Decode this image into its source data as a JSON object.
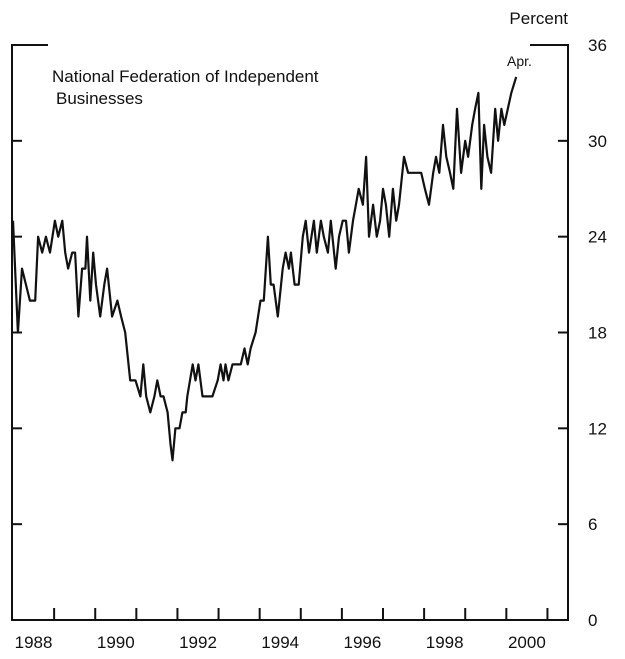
{
  "chart_data": {
    "type": "line",
    "y_axis_label": "Percent",
    "annotations": [
      "National Federation of Independent",
      "Businesses",
      "Apr."
    ],
    "xlim": [
      1988,
      2001.5
    ],
    "xticks": [
      1989,
      1990,
      1991,
      1992,
      1993,
      1994,
      1995,
      1996,
      1997,
      1998,
      1999,
      2000,
      2001
    ],
    "xlabels": [
      1988,
      1990,
      1992,
      1994,
      1996,
      1998,
      2000
    ],
    "ylim": [
      0,
      36
    ],
    "yticks": [
      0,
      6,
      12,
      18,
      24,
      30,
      36
    ],
    "series": [
      {
        "color": "#111111",
        "x": [
          1988.0,
          1988.12,
          1988.22,
          1988.41,
          1988.54,
          1988.61,
          1988.71,
          1988.8,
          1988.9,
          1989.02,
          1989.1,
          1989.2,
          1989.27,
          1989.34,
          1989.44,
          1989.51,
          1989.59,
          1989.68,
          1989.76,
          1989.8,
          1989.88,
          1989.95,
          1990.02,
          1990.12,
          1990.22,
          1990.29,
          1990.41,
          1990.54,
          1990.63,
          1990.73,
          1990.85,
          1990.98,
          1991.1,
          1991.17,
          1991.24,
          1991.34,
          1991.44,
          1991.51,
          1991.59,
          1991.66,
          1991.76,
          1991.83,
          1991.88,
          1991.95,
          1992.05,
          1992.12,
          1992.2,
          1992.24,
          1992.37,
          1992.44,
          1992.51,
          1992.61,
          1992.73,
          1992.85,
          1992.98,
          1993.05,
          1993.12,
          1993.17,
          1993.24,
          1993.34,
          1993.44,
          1993.54,
          1993.63,
          1993.71,
          1993.78,
          1993.9,
          1994.02,
          1994.1,
          1994.2,
          1994.27,
          1994.34,
          1994.44,
          1994.56,
          1994.63,
          1994.71,
          1994.76,
          1994.85,
          1994.95,
          1995.05,
          1995.12,
          1995.2,
          1995.32,
          1995.39,
          1995.49,
          1995.56,
          1995.66,
          1995.73,
          1995.85,
          1995.93,
          1996.02,
          1996.1,
          1996.17,
          1996.27,
          1996.34,
          1996.41,
          1996.51,
          1996.59,
          1996.66,
          1996.76,
          1996.85,
          1996.93,
          1997.0,
          1997.07,
          1997.15,
          1997.24,
          1997.32,
          1997.39,
          1997.51,
          1997.61,
          1997.93,
          1998.02,
          1998.12,
          1998.22,
          1998.29,
          1998.37,
          1998.46,
          1998.54,
          1998.63,
          1998.71,
          1998.8,
          1998.9,
          1999.0,
          1999.07,
          1999.17,
          1999.24,
          1999.32,
          1999.39,
          1999.46,
          1999.54,
          1999.63,
          1999.73,
          1999.8,
          1999.88,
          1999.95,
          2000.12,
          2000.24
        ],
        "values": [
          25,
          18,
          22,
          20,
          20,
          24,
          23,
          24,
          23,
          25,
          24,
          25,
          23,
          22,
          23,
          23,
          19,
          22,
          22,
          24,
          20,
          23,
          21,
          19,
          21,
          22,
          19,
          20,
          19,
          18,
          15,
          15,
          14,
          16,
          14,
          13,
          14,
          15,
          14,
          14,
          13,
          11,
          10,
          12,
          12,
          13,
          13,
          14,
          16,
          15,
          16,
          14,
          14,
          14,
          15,
          16,
          15,
          16,
          15,
          16,
          16,
          16,
          17,
          16,
          17,
          18,
          20,
          20,
          24,
          21,
          21,
          19,
          22,
          23,
          22,
          23,
          21,
          21,
          24,
          25,
          23,
          25,
          23,
          25,
          24,
          23,
          25,
          22,
          24,
          25,
          25,
          23,
          25,
          26,
          27,
          26,
          29,
          24,
          26,
          24,
          25,
          27,
          26,
          24,
          27,
          25,
          26,
          29,
          28,
          28,
          27,
          26,
          28,
          29,
          28,
          31,
          29,
          28,
          27,
          32,
          28,
          30,
          29,
          31,
          32,
          33,
          27,
          31,
          29,
          28,
          32,
          30,
          32,
          31,
          33,
          34
        ]
      }
    ]
  }
}
